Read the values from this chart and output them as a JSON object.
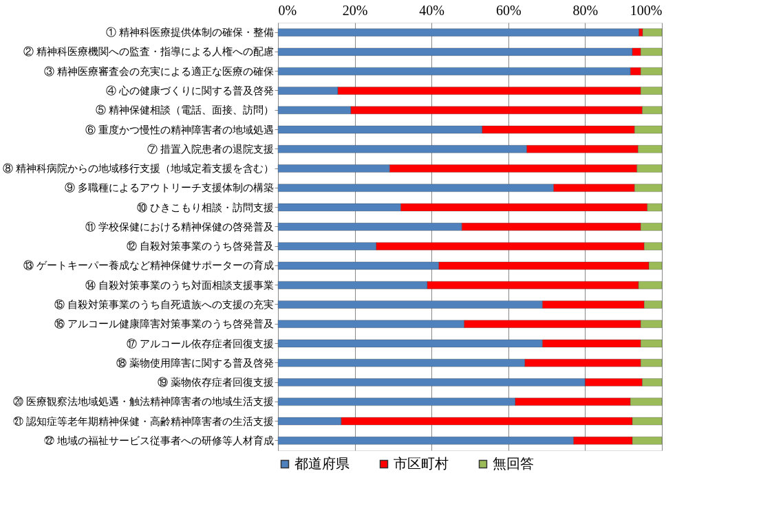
{
  "chart_data": {
    "type": "bar",
    "orientation": "horizontal",
    "stacked": true,
    "categories": [
      "① 精神科医療提供体制の確保・整備",
      "② 精神科医療機関への監査・指導による人権への配慮",
      "③ 精神医療審査会の充実による適正な医療の確保",
      "④ 心の健康づくりに関する普及啓発",
      "⑤ 精神保健相談（電話、面接、訪問）",
      "⑥ 重度かつ慢性の精神障害者の地域処遇",
      "⑦ 措置入院患者の退院支援",
      "⑧ 精神科病院からの地域移行支援（地域定着支援を含む）",
      "⑨ 多職種によるアウトリーチ支援体制の構築",
      "⑩ ひきこもり相談・訪問支援",
      "⑪ 学校保健における精神保健の啓発普及",
      "⑫ 自殺対策事業のうち啓発普及",
      "⑬ ゲートキーパー養成など精神保健サポーターの育成",
      "⑭ 自殺対策事業のうち対面相談支援事業",
      "⑮ 自殺対策事業のうち自死遺族への支援の充実",
      "⑯ アルコール健康障害対策事業のうち啓発普及",
      "⑰ アルコール依存症者回復支援",
      "⑱ 薬物使用障害に関する普及啓発",
      "⑲ 薬物依存症者回復支援",
      "⑳ 医療観察法地域処遇・触法精神障害者の地域生活支援",
      "㉑ 認知症等老年期精神保健・高齢精神障害者の生活支援",
      "㉒ 地域の福祉サービス従事者への研修等人材育成"
    ],
    "series": [
      {
        "name": "都道府県",
        "color": "#4f81bd",
        "values": [
          94,
          92.3,
          91.8,
          15.6,
          19,
          53.2,
          64.8,
          29.1,
          71.8,
          32,
          47.9,
          25.6,
          41.9,
          38.9,
          68.9,
          48.5,
          68.9,
          64.3,
          80,
          61.8,
          16.5,
          77
        ]
      },
      {
        "name": "市区町村",
        "color": "#ff0000",
        "values": [
          1,
          2.2,
          2.7,
          78.9,
          75.9,
          39.7,
          29,
          64.4,
          21.1,
          64.2,
          46.6,
          69.8,
          54.7,
          55,
          26.5,
          46,
          25.6,
          30.2,
          14.9,
          30,
          75.8,
          15.3
        ]
      },
      {
        "name": "無回答",
        "color": "#9bbb59",
        "values": [
          5,
          5.5,
          5.5,
          5.5,
          5.1,
          7.1,
          6.2,
          6.5,
          7.1,
          3.8,
          5.5,
          4.6,
          3.4,
          6.1,
          4.6,
          5.5,
          5.5,
          5.5,
          5.1,
          8.2,
          7.7,
          7.7
        ]
      }
    ],
    "xlim": [
      0,
      100
    ],
    "xticks": [
      {
        "value": 0,
        "label": "0%"
      },
      {
        "value": 20,
        "label": "20%"
      },
      {
        "value": 40,
        "label": "40%"
      },
      {
        "value": 60,
        "label": "60%"
      },
      {
        "value": 80,
        "label": "80%"
      },
      {
        "value": 100,
        "label": "100%"
      }
    ],
    "grid": "x",
    "legend": "bottom"
  }
}
